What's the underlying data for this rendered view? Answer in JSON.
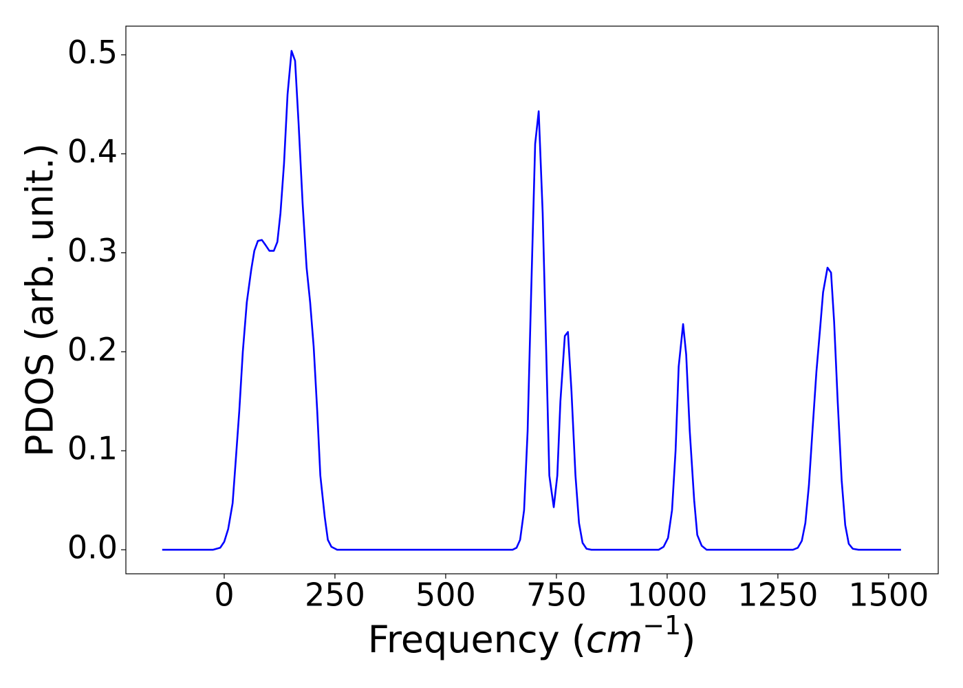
{
  "chart_data": {
    "type": "line",
    "xlabel_parts": [
      "Frequency (",
      "cm",
      "−1",
      ")"
    ],
    "ylabel": "PDOS (arb. unit.)",
    "xlim": [
      -222,
      1612
    ],
    "ylim": [
      -0.0243,
      0.529
    ],
    "xticks": [
      0,
      250,
      500,
      750,
      1000,
      1250,
      1500
    ],
    "yticks": [
      {
        "value": 0,
        "label": "0.0"
      },
      0.1,
      0.2,
      0.3,
      0.4,
      0.5
    ],
    "x": [
      -140,
      -25,
      -9,
      0,
      9,
      19,
      26,
      34,
      42,
      51,
      61,
      68,
      76,
      85,
      93,
      102,
      112,
      120,
      127,
      135,
      143,
      152,
      160,
      168,
      177,
      186,
      194,
      202,
      210,
      217,
      227,
      234,
      242,
      255,
      651,
      660,
      668,
      677,
      685,
      693,
      702,
      710,
      719,
      727,
      734,
      744,
      752,
      759,
      769,
      776,
      784,
      793,
      801,
      809,
      818,
      829,
      981,
      992,
      1002,
      1011,
      1019,
      1026,
      1036,
      1043,
      1051,
      1061,
      1068,
      1078,
      1089,
      1284,
      1295,
      1304,
      1312,
      1320,
      1328,
      1337,
      1345,
      1352,
      1362,
      1370,
      1377,
      1385,
      1394,
      1402,
      1410,
      1419,
      1432,
      1528
    ],
    "series": [
      {
        "color": "#0000ff",
        "values": [
          0,
          0,
          0.002,
          0.008,
          0.021,
          0.047,
          0.09,
          0.14,
          0.2,
          0.25,
          0.283,
          0.302,
          0.312,
          0.313,
          0.308,
          0.302,
          0.302,
          0.311,
          0.34,
          0.39,
          0.46,
          0.504,
          0.494,
          0.43,
          0.35,
          0.285,
          0.25,
          0.205,
          0.14,
          0.075,
          0.033,
          0.01,
          0.003,
          0,
          0,
          0.002,
          0.01,
          0.04,
          0.12,
          0.26,
          0.41,
          0.443,
          0.34,
          0.2,
          0.075,
          0.043,
          0.075,
          0.15,
          0.216,
          0.22,
          0.16,
          0.075,
          0.027,
          0.007,
          0.001,
          0,
          0,
          0.003,
          0.012,
          0.04,
          0.1,
          0.185,
          0.228,
          0.197,
          0.12,
          0.05,
          0.015,
          0.004,
          0,
          0,
          0.002,
          0.009,
          0.027,
          0.065,
          0.12,
          0.18,
          0.222,
          0.26,
          0.285,
          0.28,
          0.23,
          0.15,
          0.07,
          0.025,
          0.006,
          0.001,
          0,
          0
        ]
      }
    ]
  }
}
